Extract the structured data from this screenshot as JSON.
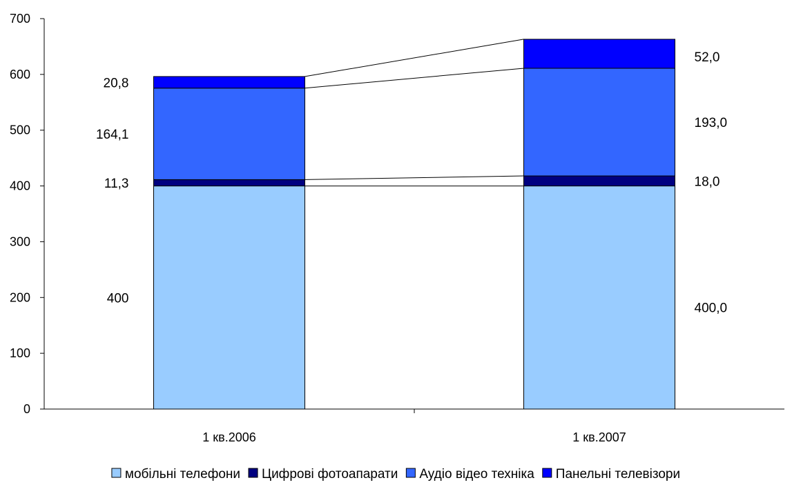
{
  "chart_data": {
    "type": "bar",
    "stacked": true,
    "categories": [
      "1 кв.2006",
      "1 кв.2007"
    ],
    "series": [
      {
        "name": "мобільні телефони",
        "values": [
          400,
          400.0
        ],
        "labels": [
          "400",
          "400,0"
        ],
        "color": "#99ccff"
      },
      {
        "name": "Цифрові фотоапарати",
        "values": [
          11.3,
          18.0
        ],
        "labels": [
          "11,3",
          "18,0"
        ],
        "color": "#000080"
      },
      {
        "name": "Аудіо відео техніка",
        "values": [
          164.1,
          193.0
        ],
        "labels": [
          "164,1",
          "193,0"
        ],
        "color": "#3366ff"
      },
      {
        "name": "Панельні телевізори",
        "values": [
          20.8,
          52.0
        ],
        "labels": [
          "20,8",
          "52,0"
        ],
        "color": "#0000ff"
      }
    ],
    "ylim": [
      0,
      700
    ],
    "yticks": [
      "0",
      "100",
      "200",
      "300",
      "400",
      "500",
      "600",
      "700"
    ],
    "series_lines": true,
    "grid": false,
    "legend_position": "bottom"
  }
}
